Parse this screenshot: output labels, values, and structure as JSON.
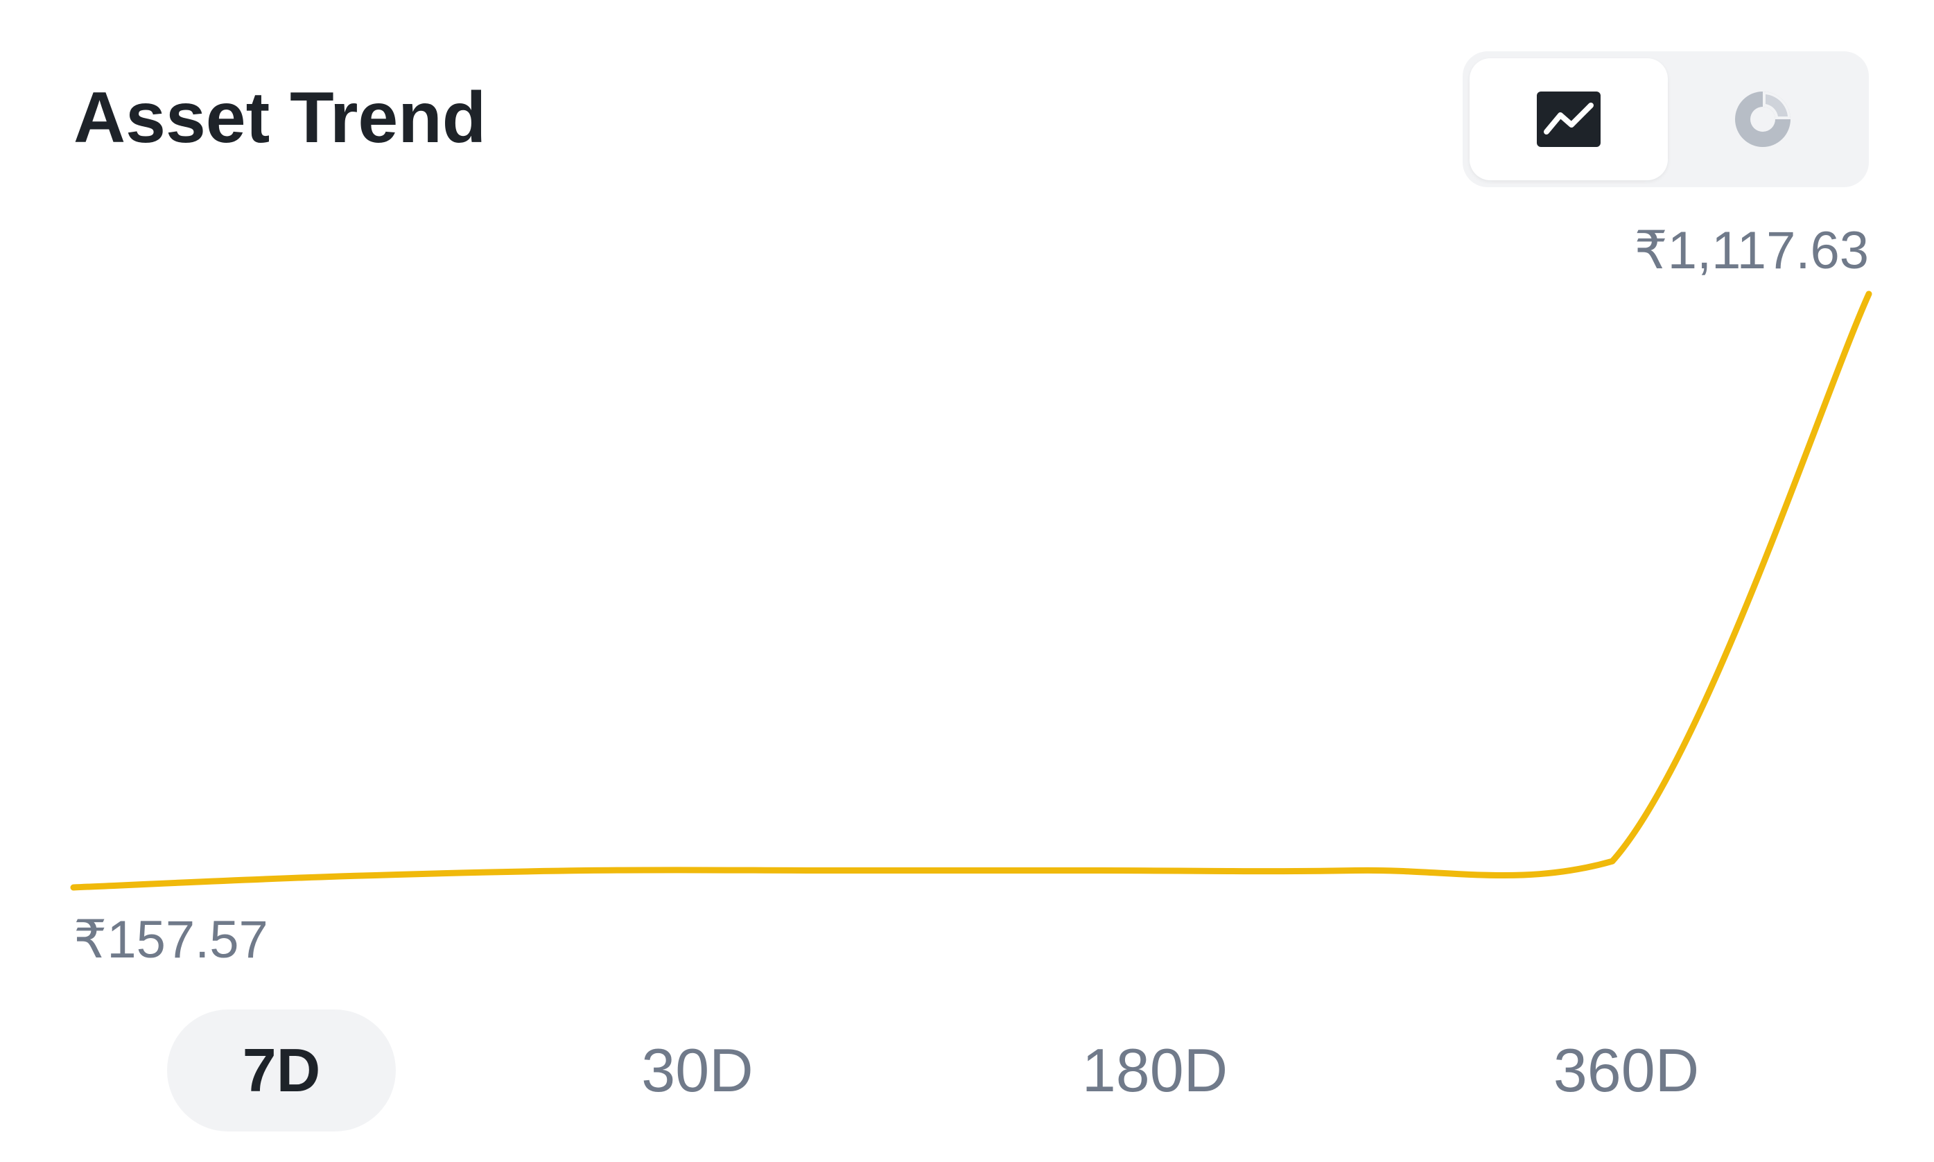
{
  "header": {
    "title": "Asset Trend"
  },
  "view_toggle": {
    "selected": "line",
    "buttons": [
      {
        "id": "line",
        "icon": "line-chart-icon"
      },
      {
        "id": "pie",
        "icon": "pie-chart-icon"
      }
    ]
  },
  "chart_data": {
    "type": "line",
    "title": "",
    "xlabel": "",
    "ylabel": "",
    "x": [
      0,
      1,
      2,
      3,
      4,
      5,
      6,
      7
    ],
    "series": [
      {
        "values": [
          157.57,
          175,
          185,
          185,
          185,
          185,
          200,
          1117.63
        ]
      }
    ],
    "annotations": {
      "max_label": "₹1,117.63",
      "min_label": "₹157.57"
    },
    "ylim": [
      157.57,
      1117.63
    ],
    "grid": false,
    "line_color": "#F0B90B"
  },
  "time_ranges": {
    "selected": "7D",
    "options": [
      "7D",
      "30D",
      "180D",
      "360D"
    ]
  },
  "colors": {
    "accent": "#F0B90B",
    "text_primary": "#1E2329",
    "text_secondary": "#707A8A",
    "chip_bg": "#F2F3F5"
  }
}
